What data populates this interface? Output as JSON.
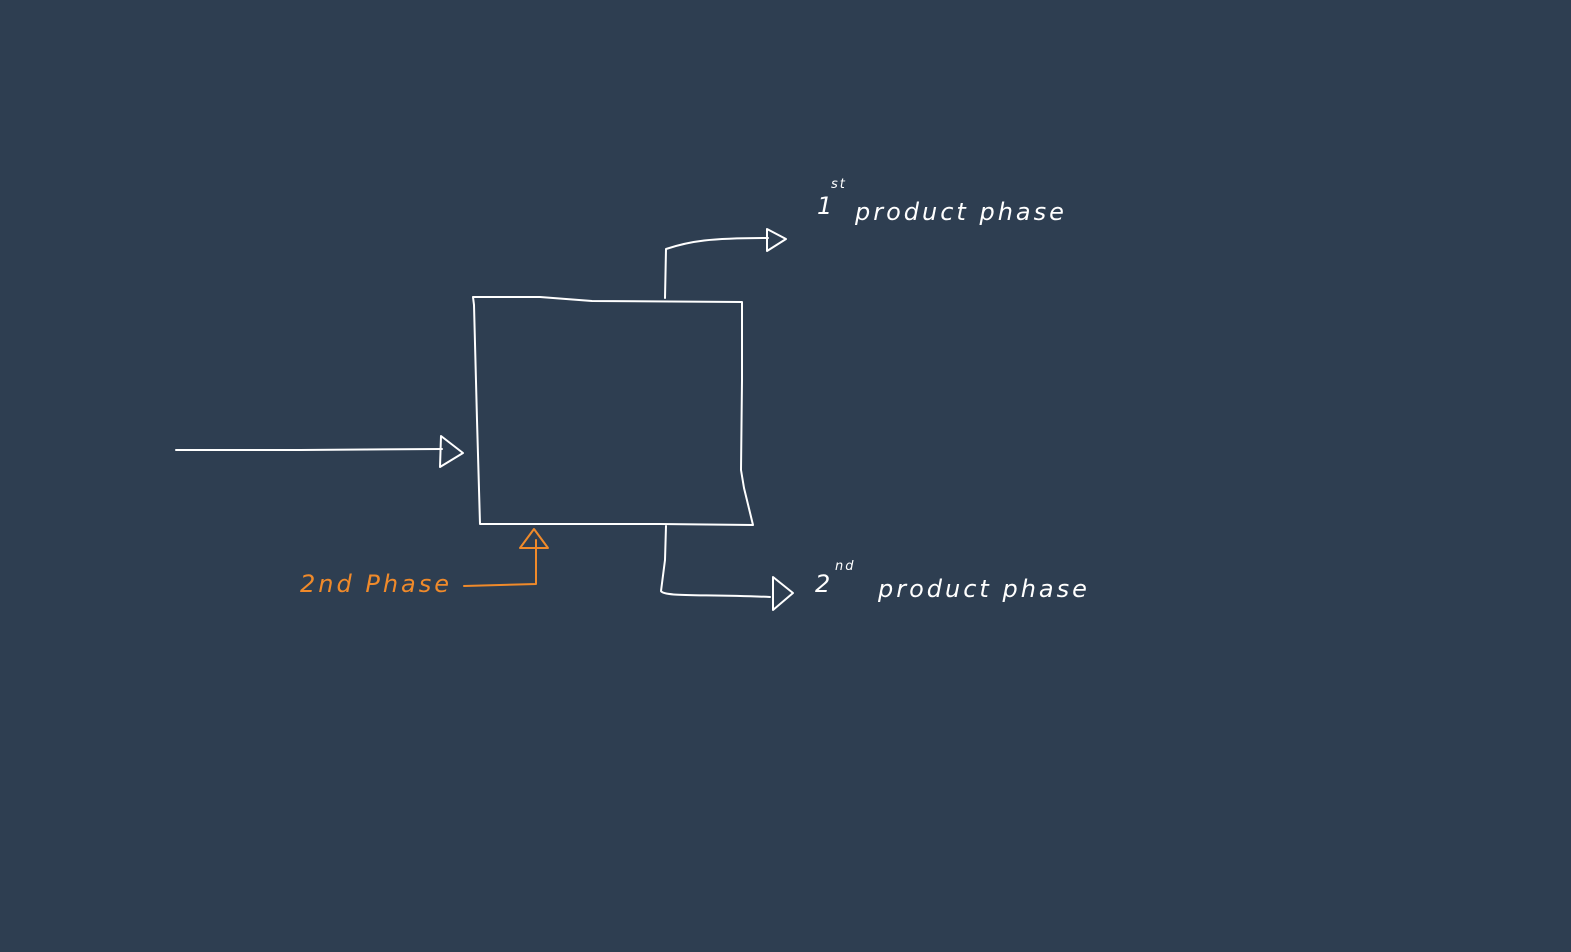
{
  "canvas": {
    "background": "#2e3e51",
    "stroke_color": "#ffffff",
    "accent_color": "#f08a2a"
  },
  "labels": {
    "feed_second_phase": "2nd Phase",
    "output_top": {
      "number": "1",
      "superscript": "st",
      "text": "product phase"
    },
    "output_bottom": {
      "number": "2",
      "superscript": "nd",
      "text": "product phase"
    }
  }
}
